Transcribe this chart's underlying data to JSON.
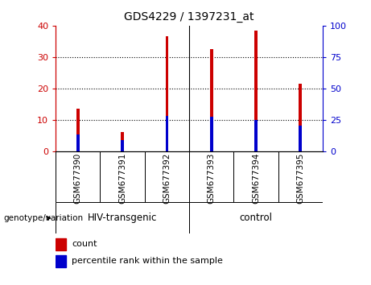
{
  "title": "GDS4229 / 1397231_at",
  "samples": [
    "GSM677390",
    "GSM677391",
    "GSM677392",
    "GSM677393",
    "GSM677394",
    "GSM677395"
  ],
  "count_values": [
    13.5,
    6.0,
    36.5,
    32.5,
    38.5,
    21.5
  ],
  "percentile_values": [
    13.0,
    8.5,
    28.0,
    27.5,
    25.0,
    20.0
  ],
  "groups": [
    {
      "label": "HIV-transgenic",
      "start": 0,
      "end": 3,
      "color": "#90EE90"
    },
    {
      "label": "control",
      "start": 3,
      "end": 6,
      "color": "#90EE90"
    }
  ],
  "group_label_prefix": "genotype/variation",
  "left_ylim": [
    0,
    40
  ],
  "right_ylim": [
    0,
    100
  ],
  "left_yticks": [
    0,
    10,
    20,
    30,
    40
  ],
  "right_yticks": [
    0,
    25,
    50,
    75,
    100
  ],
  "count_color": "#CC0000",
  "percentile_color": "#0000CC",
  "bg_color": "#C8C8C8",
  "plot_bg": "#FFFFFF",
  "green_color": "#90EE90",
  "legend_items": [
    "count",
    "percentile rank within the sample"
  ],
  "bar_width": 0.07
}
